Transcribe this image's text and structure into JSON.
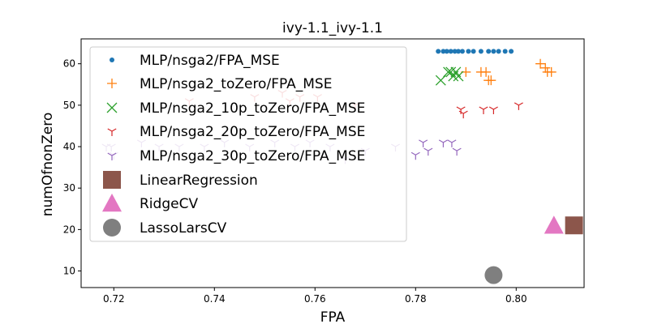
{
  "chart_data": {
    "type": "scatter",
    "title": "ivy-1.1_ivy-1.1",
    "xlabel": "FPA",
    "ylabel": "numOfnonZero",
    "xlim": [
      0.7135,
      0.8135
    ],
    "ylim": [
      6,
      66
    ],
    "xticks": [
      "0.72",
      "0.74",
      "0.76",
      "0.78",
      "0.80"
    ],
    "yticks": [
      "10",
      "20",
      "30",
      "40",
      "50",
      "60"
    ],
    "grid": false,
    "legend_position": "upper-left",
    "series": [
      {
        "name": "MLP/nsga2/FPA_MSE",
        "marker": "dot",
        "color": "#1f77b4",
        "points": [
          [
            0.7845,
            63
          ],
          [
            0.7855,
            63
          ],
          [
            0.7862,
            63
          ],
          [
            0.787,
            63
          ],
          [
            0.7878,
            63
          ],
          [
            0.7885,
            63
          ],
          [
            0.7893,
            63
          ],
          [
            0.7905,
            63
          ],
          [
            0.7915,
            63
          ],
          [
            0.793,
            63
          ],
          [
            0.7945,
            63
          ],
          [
            0.7955,
            63
          ],
          [
            0.7965,
            63
          ],
          [
            0.7978,
            63
          ],
          [
            0.799,
            63
          ]
        ]
      },
      {
        "name": "MLP/nsga2_toZero/FPA_MSE",
        "marker": "plus",
        "color": "#ff7f0e",
        "points": [
          [
            0.79,
            58
          ],
          [
            0.793,
            58
          ],
          [
            0.794,
            58
          ],
          [
            0.7945,
            56
          ],
          [
            0.795,
            56
          ],
          [
            0.8048,
            60
          ],
          [
            0.8058,
            59
          ],
          [
            0.8062,
            58
          ],
          [
            0.807,
            58
          ]
        ]
      },
      {
        "name": "MLP/nsga2_10p_toZero/FPA_MSE",
        "marker": "x",
        "color": "#2ca02c",
        "points": [
          [
            0.785,
            56
          ],
          [
            0.7865,
            58
          ],
          [
            0.7875,
            57
          ],
          [
            0.788,
            58
          ],
          [
            0.7885,
            57
          ],
          [
            0.787,
            58
          ]
        ]
      },
      {
        "name": "MLP/nsga2_20p_toZero/FPA_MSE",
        "marker": "tri",
        "color": "#d62728",
        "points": [
          [
            0.735,
            51
          ],
          [
            0.748,
            52
          ],
          [
            0.7535,
            53
          ],
          [
            0.755,
            51
          ],
          [
            0.757,
            52
          ],
          [
            0.7605,
            52
          ],
          [
            0.768,
            50
          ],
          [
            0.789,
            49
          ],
          [
            0.7895,
            48
          ],
          [
            0.7935,
            49
          ],
          [
            0.7955,
            49
          ],
          [
            0.8005,
            50
          ]
        ]
      },
      {
        "name": "MLP/nsga2_30p_toZero/FPA_MSE",
        "marker": "tri",
        "color": "#9467bd",
        "points": [
          [
            0.7185,
            40
          ],
          [
            0.7195,
            40
          ],
          [
            0.72,
            38
          ],
          [
            0.7255,
            41
          ],
          [
            0.729,
            40
          ],
          [
            0.733,
            40
          ],
          [
            0.738,
            40
          ],
          [
            0.742,
            41
          ],
          [
            0.747,
            40
          ],
          [
            0.752,
            41
          ],
          [
            0.756,
            40
          ],
          [
            0.759,
            41
          ],
          [
            0.763,
            40
          ],
          [
            0.766,
            37
          ],
          [
            0.77,
            39
          ],
          [
            0.776,
            40
          ],
          [
            0.78,
            38
          ],
          [
            0.7815,
            41
          ],
          [
            0.7825,
            39
          ],
          [
            0.7855,
            41
          ],
          [
            0.7872,
            41
          ],
          [
            0.7882,
            39
          ]
        ]
      },
      {
        "name": "LinearRegression",
        "marker": "square",
        "color": "#8c564b",
        "points": [
          [
            0.8115,
            21
          ]
        ]
      },
      {
        "name": "RidgeCV",
        "marker": "triangle",
        "color": "#e377c2",
        "points": [
          [
            0.8075,
            21
          ]
        ]
      },
      {
        "name": "LassoLarsCV",
        "marker": "circle",
        "color": "#7f7f7f",
        "points": [
          [
            0.7955,
            9
          ]
        ]
      }
    ]
  }
}
